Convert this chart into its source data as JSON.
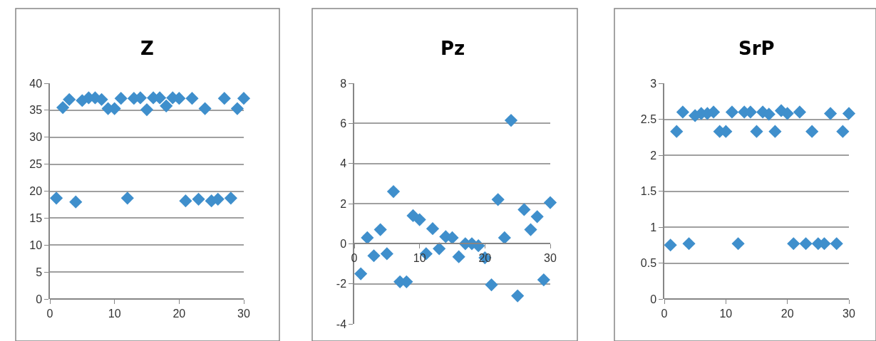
{
  "chart_data": [
    {
      "type": "scatter",
      "title": "Z",
      "x": [
        1,
        2,
        3,
        4,
        5,
        6,
        7,
        8,
        9,
        10,
        11,
        12,
        13,
        14,
        15,
        16,
        17,
        18,
        19,
        20,
        21,
        22,
        23,
        24,
        25,
        26,
        27,
        28,
        29,
        30
      ],
      "values": [
        18.7,
        35.5,
        37,
        18,
        36.8,
        37.3,
        37.3,
        37,
        35.3,
        35.3,
        37.2,
        18.7,
        37.2,
        37.3,
        35.1,
        37.3,
        37.3,
        35.8,
        37.3,
        37.2,
        18.2,
        37.2,
        18.5,
        35.3,
        18.2,
        18.5,
        37.2,
        18.7,
        35.3,
        37.2
      ],
      "color": "#3f8fcc",
      "marker": "diamond",
      "grid": "y",
      "xlim": [
        0,
        30
      ],
      "xticks": [
        0,
        10,
        20,
        30
      ],
      "ylim": [
        0,
        40
      ],
      "yticks": [
        0,
        5,
        10,
        15,
        20,
        25,
        30,
        35,
        40
      ]
    },
    {
      "type": "scatter",
      "title": "Pz",
      "x": [
        1,
        2,
        3,
        4,
        5,
        6,
        7,
        8,
        9,
        10,
        11,
        12,
        13,
        14,
        15,
        16,
        17,
        18,
        19,
        20,
        21,
        22,
        23,
        24,
        25,
        26,
        27,
        28,
        29,
        30
      ],
      "values": [
        -1.5,
        0.3,
        -0.6,
        0.7,
        -0.5,
        2.6,
        -1.9,
        -1.9,
        1.4,
        1.2,
        -0.5,
        0.75,
        -0.25,
        0.35,
        0.3,
        -0.65,
        0,
        0,
        -0.1,
        -0.7,
        -2.05,
        2.2,
        0.3,
        6.15,
        -2.6,
        1.7,
        0.7,
        1.35,
        -1.8,
        2.05
      ],
      "color": "#3f8fcc",
      "marker": "diamond",
      "grid": "y",
      "xlim": [
        0,
        30
      ],
      "xticks": [
        0,
        10,
        20,
        30
      ],
      "ylim": [
        -4,
        8
      ],
      "yticks": [
        -4,
        -2,
        0,
        2,
        4,
        6,
        8
      ]
    },
    {
      "type": "scatter",
      "title": "SrP",
      "x": [
        1,
        2,
        3,
        4,
        5,
        6,
        7,
        8,
        9,
        10,
        11,
        12,
        13,
        14,
        15,
        16,
        17,
        18,
        19,
        20,
        21,
        22,
        23,
        24,
        25,
        26,
        27,
        28,
        29,
        30
      ],
      "values": [
        0.75,
        2.33,
        2.6,
        0.77,
        2.55,
        2.58,
        2.58,
        2.6,
        2.33,
        2.33,
        2.6,
        0.77,
        2.6,
        2.6,
        2.33,
        2.6,
        2.57,
        2.33,
        2.62,
        2.58,
        0.77,
        2.6,
        0.77,
        2.33,
        0.77,
        0.77,
        2.58,
        0.77,
        2.33,
        2.58
      ],
      "color": "#3f8fcc",
      "marker": "diamond",
      "grid": "y",
      "xlim": [
        0,
        30
      ],
      "xticks": [
        0,
        10,
        20,
        30
      ],
      "ylim": [
        0,
        3
      ],
      "yticks": [
        0,
        0.5,
        1,
        1.5,
        2,
        2.5,
        3
      ]
    }
  ]
}
